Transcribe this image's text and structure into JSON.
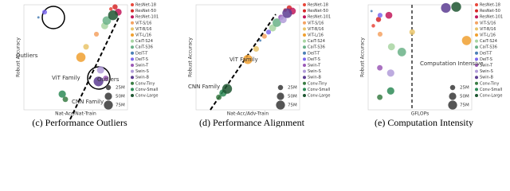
{
  "chart_data": [
    {
      "type": "scatter",
      "caption": "(c) Performance Outliers",
      "xlabel": "Nat-Acc/Nat-Train",
      "ylabel": "Robust Accuracy",
      "xlim": [
        0,
        100
      ],
      "ylim": [
        0,
        100
      ],
      "annotations": [
        "Outliers",
        "ViT Family",
        "Outliers",
        "CNN Family"
      ],
      "size_legend": [
        {
          "value": 25,
          "label": "25M"
        },
        {
          "value": 50,
          "label": "50M"
        },
        {
          "value": 75,
          "label": "75M"
        }
      ],
      "series": [
        {
          "name": "ResNet-18",
          "color": "#e8473b",
          "x": [
            84
          ],
          "values": [
            96
          ],
          "sizes": [
            12
          ]
        },
        {
          "name": "ResNet-50",
          "color": "#d62728",
          "x": [
            88
          ],
          "values": [
            98
          ],
          "sizes": [
            25
          ]
        },
        {
          "name": "ResNet-101",
          "color": "#c2185b",
          "x": [
            91
          ],
          "values": [
            93
          ],
          "sizes": [
            45
          ]
        },
        {
          "name": "ViT-S/16",
          "color": "#f4a261",
          "x": [
            70
          ],
          "values": [
            72
          ],
          "sizes": [
            22
          ]
        },
        {
          "name": "ViT-B/16",
          "color": "#e9c46a",
          "x": [
            60
          ],
          "values": [
            60
          ],
          "sizes": [
            30
          ]
        },
        {
          "name": "ViT-L/16",
          "color": "#f0a030",
          "x": [
            55
          ],
          "values": [
            50
          ],
          "sizes": [
            80
          ]
        },
        {
          "name": "CaiT-S24",
          "color": "#a8d5a2",
          "x": [
            78
          ],
          "values": [
            80
          ],
          "sizes": [
            46
          ]
        },
        {
          "name": "CaiT-S36",
          "color": "#6ab187",
          "x": [
            80
          ],
          "values": [
            85
          ],
          "sizes": [
            68
          ]
        },
        {
          "name": "DeiT-T",
          "color": "#4a7fb5",
          "x": [
            14
          ],
          "values": [
            88
          ],
          "sizes": [
            5
          ]
        },
        {
          "name": "DeiT-S",
          "color": "#7b68ee",
          "x": [
            20
          ],
          "values": [
            93
          ],
          "sizes": [
            22
          ]
        },
        {
          "name": "Swin-T",
          "color": "#9b59b6",
          "x": [
            79
          ],
          "values": [
            30
          ],
          "sizes": [
            28
          ]
        },
        {
          "name": "Swin-S",
          "color": "#b19cd9",
          "x": [
            74
          ],
          "values": [
            38
          ],
          "sizes": [
            50
          ]
        },
        {
          "name": "Swin-B",
          "color": "#5c3c92",
          "x": [
            72
          ],
          "values": [
            27
          ],
          "sizes": [
            88
          ]
        },
        {
          "name": "Conv-Tiny",
          "color": "#3a7d44",
          "x": [
            40
          ],
          "values": [
            10
          ],
          "sizes": [
            28
          ]
        },
        {
          "name": "Conv-Small",
          "color": "#2e8b57",
          "x": [
            37
          ],
          "values": [
            15
          ],
          "sizes": [
            50
          ]
        },
        {
          "name": "Conv-Large",
          "color": "#1e5631",
          "x": [
            86
          ],
          "values": [
            90
          ],
          "sizes": [
            90
          ]
        }
      ]
    },
    {
      "type": "scatter",
      "caption": "(d) Performance Alignment",
      "xlabel": "Nat-Acc/Adv-Train",
      "ylabel": "Robust Accuracy",
      "xlim": [
        0,
        100
      ],
      "ylim": [
        0,
        100
      ],
      "annotations": [
        "ViT Family",
        "CNN Family"
      ],
      "size_legend": [
        {
          "value": 25,
          "label": "25M"
        },
        {
          "value": 50,
          "label": "50M"
        },
        {
          "value": 75,
          "label": "75M"
        }
      ],
      "series": [
        {
          "name": "ResNet-18",
          "color": "#e8473b",
          "x": [
            86
          ],
          "values": [
            95
          ],
          "sizes": [
            12
          ]
        },
        {
          "name": "ResNet-50",
          "color": "#d62728",
          "x": [
            90
          ],
          "values": [
            97
          ],
          "sizes": [
            25
          ]
        },
        {
          "name": "ResNet-101",
          "color": "#c2185b",
          "x": [
            93
          ],
          "values": [
            94
          ],
          "sizes": [
            45
          ]
        },
        {
          "name": "ViT-S/16",
          "color": "#f4a261",
          "x": [
            66
          ],
          "values": [
            70
          ],
          "sizes": [
            22
          ]
        },
        {
          "name": "ViT-B/16",
          "color": "#e9c46a",
          "x": [
            58
          ],
          "values": [
            58
          ],
          "sizes": [
            30
          ]
        },
        {
          "name": "ViT-L/16",
          "color": "#f0a030",
          "x": [
            50
          ],
          "values": [
            48
          ],
          "sizes": [
            80
          ]
        },
        {
          "name": "CaiT-S24",
          "color": "#a8d5a2",
          "x": [
            74
          ],
          "values": [
            78
          ],
          "sizes": [
            46
          ]
        },
        {
          "name": "CaiT-S36",
          "color": "#6ab187",
          "x": [
            78
          ],
          "values": [
            83
          ],
          "sizes": [
            68
          ]
        },
        {
          "name": "DeiT-T",
          "color": "#4a7fb5",
          "x": [
            62
          ],
          "values": [
            66
          ],
          "sizes": [
            5
          ]
        },
        {
          "name": "DeiT-S",
          "color": "#7b68ee",
          "x": [
            70
          ],
          "values": [
            74
          ],
          "sizes": [
            22
          ]
        },
        {
          "name": "Swin-T",
          "color": "#9b59b6",
          "x": [
            82
          ],
          "values": [
            88
          ],
          "sizes": [
            28
          ]
        },
        {
          "name": "Swin-S",
          "color": "#b19cd9",
          "x": [
            84
          ],
          "values": [
            86
          ],
          "sizes": [
            50
          ]
        },
        {
          "name": "Swin-B",
          "color": "#5c3c92",
          "x": [
            88
          ],
          "values": [
            92
          ],
          "sizes": [
            88
          ]
        },
        {
          "name": "Conv-Tiny",
          "color": "#3a7d44",
          "x": [
            22
          ],
          "values": [
            12
          ],
          "sizes": [
            28
          ]
        },
        {
          "name": "Conv-Small",
          "color": "#2e8b57",
          "x": [
            26
          ],
          "values": [
            16
          ],
          "sizes": [
            50
          ]
        },
        {
          "name": "Conv-Large",
          "color": "#1e5631",
          "x": [
            30
          ],
          "values": [
            20
          ],
          "sizes": [
            90
          ]
        }
      ]
    },
    {
      "type": "scatter",
      "caption": "(e) Computation Intensity",
      "xlabel": "GFLOPs",
      "ylabel": "Robust Accuracy",
      "xlim": [
        0,
        40
      ],
      "ylim": [
        0,
        100
      ],
      "annotations": [
        "Computation Intensive"
      ],
      "size_legend": [
        {
          "value": 25,
          "label": "25M"
        },
        {
          "value": 50,
          "label": "50M"
        },
        {
          "value": 75,
          "label": "75M"
        }
      ],
      "series": [
        {
          "name": "ResNet-18",
          "color": "#e8473b",
          "x": [
            2
          ],
          "values": [
            80
          ],
          "sizes": [
            12
          ]
        },
        {
          "name": "ResNet-50",
          "color": "#d62728",
          "x": [
            4
          ],
          "values": [
            86
          ],
          "sizes": [
            25
          ]
        },
        {
          "name": "ResNet-101",
          "color": "#c2185b",
          "x": [
            8
          ],
          "values": [
            90
          ],
          "sizes": [
            45
          ]
        },
        {
          "name": "ViT-S/16",
          "color": "#f4a261",
          "x": [
            4.6
          ],
          "values": [
            72
          ],
          "sizes": [
            22
          ]
        },
        {
          "name": "ViT-B/16",
          "color": "#e9c46a",
          "x": [
            17
          ],
          "values": [
            74
          ],
          "sizes": [
            30
          ]
        },
        {
          "name": "ViT-L/16",
          "color": "#f0a030",
          "x": [
            38
          ],
          "values": [
            66
          ],
          "sizes": [
            80
          ]
        },
        {
          "name": "CaiT-S24",
          "color": "#a8d5a2",
          "x": [
            9
          ],
          "values": [
            60
          ],
          "sizes": [
            46
          ]
        },
        {
          "name": "CaiT-S36",
          "color": "#6ab187",
          "x": [
            13
          ],
          "values": [
            55
          ],
          "sizes": [
            68
          ]
        },
        {
          "name": "DeiT-T",
          "color": "#4a7fb5",
          "x": [
            1.3
          ],
          "values": [
            94
          ],
          "sizes": [
            5
          ]
        },
        {
          "name": "DeiT-S",
          "color": "#7b68ee",
          "x": [
            4.6
          ],
          "values": [
            90
          ],
          "sizes": [
            22
          ]
        },
        {
          "name": "Swin-T",
          "color": "#9b59b6",
          "x": [
            4.5
          ],
          "values": [
            40
          ],
          "sizes": [
            28
          ]
        },
        {
          "name": "Swin-S",
          "color": "#b19cd9",
          "x": [
            8.7
          ],
          "values": [
            35
          ],
          "sizes": [
            50
          ]
        },
        {
          "name": "Swin-B",
          "color": "#5c3c92",
          "x": [
            30
          ],
          "values": [
            97
          ],
          "sizes": [
            88
          ]
        },
        {
          "name": "Conv-Tiny",
          "color": "#3a7d44",
          "x": [
            4.5
          ],
          "values": [
            12
          ],
          "sizes": [
            28
          ]
        },
        {
          "name": "Conv-Small",
          "color": "#2e8b57",
          "x": [
            8.7
          ],
          "values": [
            18
          ],
          "sizes": [
            50
          ]
        },
        {
          "name": "Conv-Large",
          "color": "#1e5631",
          "x": [
            34
          ],
          "values": [
            98
          ],
          "sizes": [
            90
          ]
        }
      ]
    }
  ]
}
